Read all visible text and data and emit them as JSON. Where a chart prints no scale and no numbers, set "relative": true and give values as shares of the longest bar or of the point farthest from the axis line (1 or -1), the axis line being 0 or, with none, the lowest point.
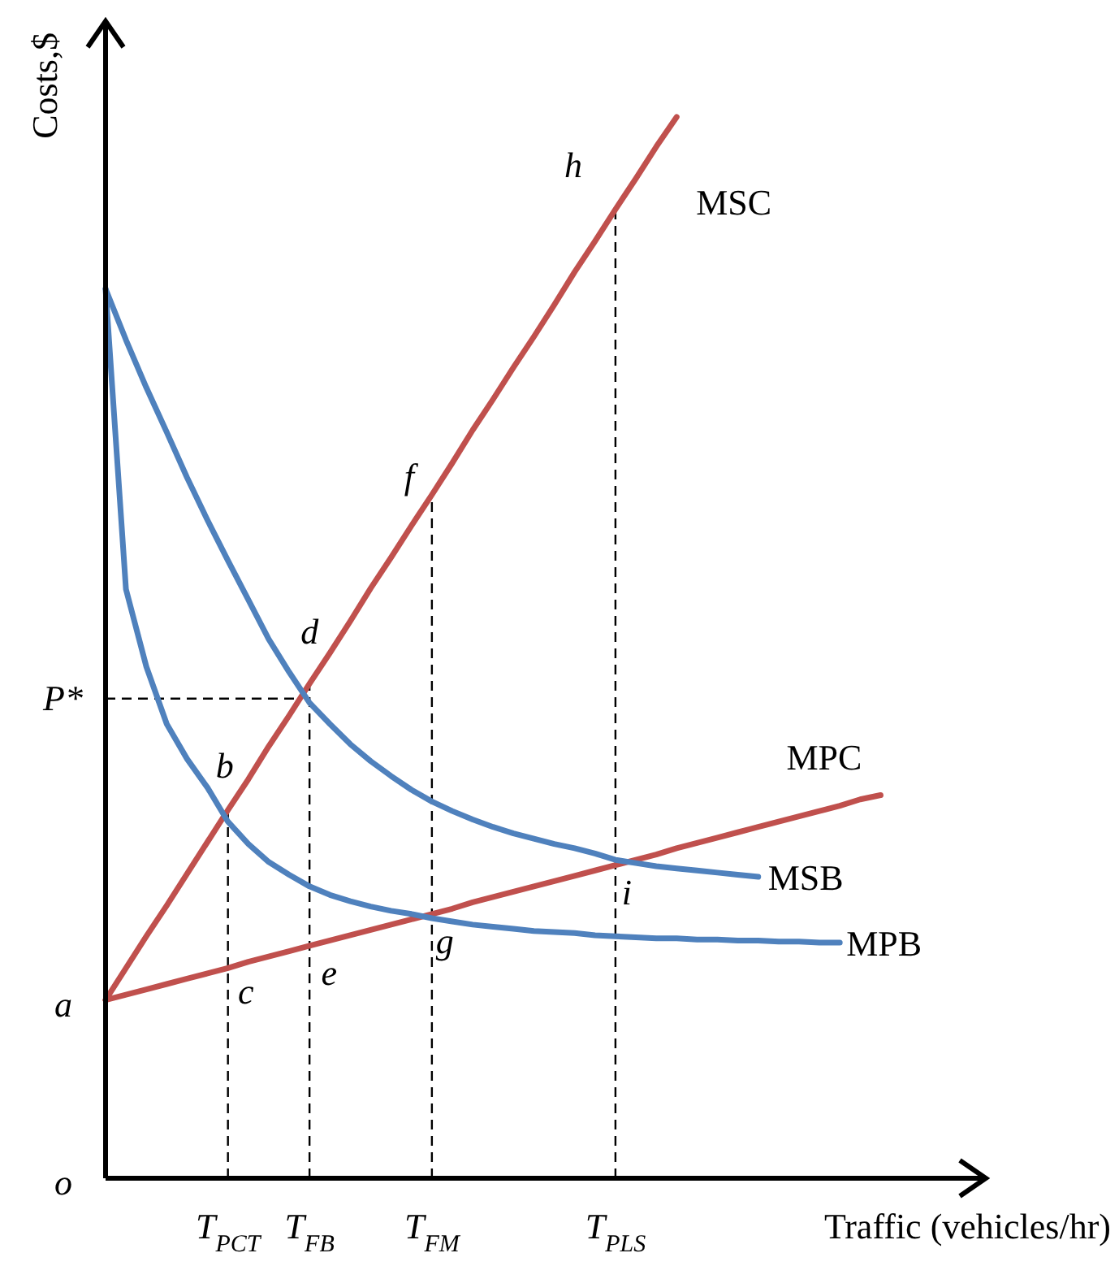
{
  "chart_data": {
    "type": "line",
    "relative": true,
    "xlabel": "Traffic (vehicles/hr)",
    "ylabel": "Costs,$",
    "categories": [
      null,
      null,
      null,
      null,
      null,
      null,
      "T$_{PCT}$",
      null,
      null,
      null,
      "T$_{FB}$",
      null,
      null,
      null,
      null,
      null,
      "T$_{FM}$",
      null,
      null,
      null,
      null,
      null,
      null,
      null,
      null,
      "T$_{PLS}$",
      null,
      null,
      null,
      null,
      null,
      null,
      null,
      null,
      null,
      null,
      null,
      null,
      null
    ],
    "series": [
      {
        "name": "MSC",
        "color": "#c0504d",
        "values": [
          0.168,
          0.198,
          0.228,
          0.257,
          0.287,
          0.317,
          0.347,
          0.376,
          0.407,
          0.436,
          0.466,
          0.495,
          0.525,
          0.556,
          0.585,
          0.615,
          0.644,
          0.674,
          0.705,
          0.734,
          0.764,
          0.793,
          0.823,
          0.854,
          0.883,
          0.913,
          0.942,
          0.972,
          1.0,
          null,
          null,
          null,
          null,
          null,
          null,
          null,
          null,
          null,
          null
        ]
      },
      {
        "name": "MPC",
        "color": "#c0504d",
        "values": [
          0.168,
          0.173,
          0.178,
          0.183,
          0.188,
          0.193,
          0.198,
          0.204,
          0.209,
          0.214,
          0.219,
          0.224,
          0.229,
          0.234,
          0.239,
          0.244,
          0.249,
          0.254,
          0.26,
          0.265,
          0.27,
          0.275,
          0.28,
          0.285,
          0.29,
          0.295,
          0.3,
          0.305,
          0.311,
          0.316,
          0.321,
          0.326,
          0.331,
          0.336,
          0.341,
          0.346,
          0.351,
          0.357,
          0.361
        ]
      },
      {
        "name": "MSB",
        "color": "#4f81bd",
        "values": [
          0.838,
          0.79,
          0.745,
          0.703,
          0.66,
          0.62,
          0.582,
          0.545,
          0.508,
          0.477,
          0.448,
          0.428,
          0.409,
          0.393,
          0.379,
          0.366,
          0.355,
          0.346,
          0.338,
          0.331,
          0.325,
          0.32,
          0.315,
          0.311,
          0.306,
          0.3,
          0.297,
          0.294,
          0.292,
          0.29,
          0.288,
          0.286,
          0.284,
          null,
          null,
          null,
          null,
          null,
          null
        ]
      },
      {
        "name": "MPB",
        "color": "#4f81bd",
        "values": [
          0.838,
          0.555,
          0.482,
          0.428,
          0.395,
          0.368,
          0.336,
          0.315,
          0.298,
          0.286,
          0.275,
          0.267,
          0.261,
          0.256,
          0.252,
          0.249,
          0.245,
          0.242,
          0.239,
          0.237,
          0.235,
          0.233,
          0.232,
          0.231,
          0.229,
          0.228,
          0.227,
          0.226,
          0.226,
          0.225,
          0.225,
          0.224,
          0.224,
          0.223,
          0.223,
          0.222,
          0.222,
          null,
          null
        ]
      }
    ],
    "ref_lines": [
      {
        "axis": "x",
        "value": "T$_{PCT}$",
        "line_style": "dashed"
      },
      {
        "axis": "x",
        "value": "T$_{FB}$",
        "line_style": "dashed"
      },
      {
        "axis": "x",
        "value": "T$_{FM}$",
        "line_style": "dashed"
      },
      {
        "axis": "x",
        "value": "T$_{PLS}$",
        "line_style": "dashed"
      },
      {
        "axis": "y",
        "value": 0.452,
        "label": "P*",
        "line_style": "dashed"
      }
    ],
    "annotations": [
      {
        "text": "b",
        "x": "T$_{PCT}$",
        "y": 0.347
      },
      {
        "text": "c",
        "x": "T$_{PCT}$",
        "y": 0.198
      },
      {
        "text": "d",
        "x": "T$_{FB}$",
        "y": 0.452
      },
      {
        "text": "e",
        "x": "T$_{FB}$",
        "y": 0.219
      },
      {
        "text": "f",
        "x": "T$_{FM}$",
        "y": 0.644
      },
      {
        "text": "g",
        "x": "T$_{FM}$",
        "y": 0.249
      },
      {
        "text": "h",
        "x": "T$_{PLS}$",
        "y": 0.913
      },
      {
        "text": "i",
        "x": "T$_{PLS}$",
        "y": 0.295
      },
      "a",
      "o"
    ]
  }
}
